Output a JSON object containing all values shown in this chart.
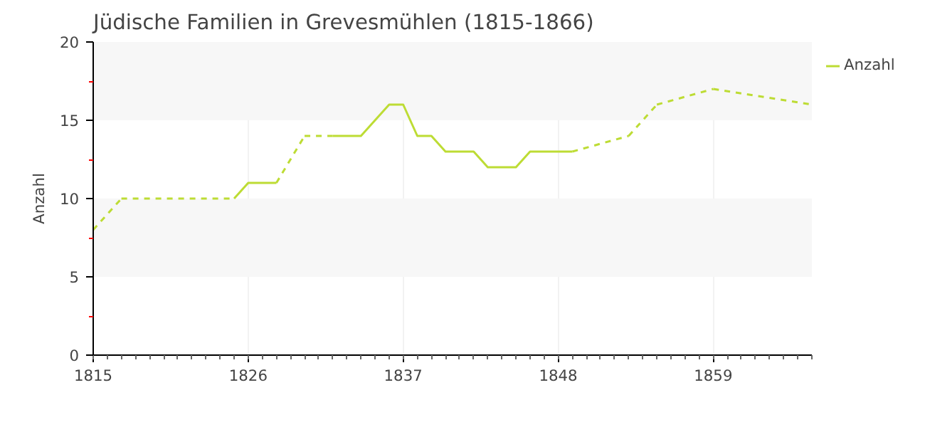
{
  "chart_data": {
    "type": "line",
    "title": "Jüdische Familien in Grevesmühlen (1815-1866)",
    "ylabel": "Anzahl",
    "x": [
      1815,
      1817,
      1825,
      1826,
      1827,
      1828,
      1830,
      1832,
      1833,
      1834,
      1835,
      1836,
      1837,
      1838,
      1839,
      1840,
      1841,
      1842,
      1843,
      1844,
      1845,
      1846,
      1847,
      1848,
      1849,
      1853,
      1855,
      1859,
      1866
    ],
    "series": [
      {
        "name": "Anzahl",
        "color": "#bddc34",
        "values": [
          8,
          10,
          10,
          11,
          11,
          11,
          14,
          14,
          14,
          14,
          15,
          16,
          16,
          14,
          14,
          13,
          13,
          13,
          12,
          12,
          12,
          13,
          13,
          13,
          13,
          14,
          16,
          17,
          16
        ]
      }
    ],
    "xlim": [
      1815,
      1866
    ],
    "xticks": [
      1815,
      1826,
      1837,
      1848,
      1859
    ],
    "ylim": [
      0,
      20
    ],
    "yticks": [
      0,
      5,
      10,
      15,
      20
    ],
    "grid": true,
    "legend": "top right",
    "line_style": "solid"
  }
}
